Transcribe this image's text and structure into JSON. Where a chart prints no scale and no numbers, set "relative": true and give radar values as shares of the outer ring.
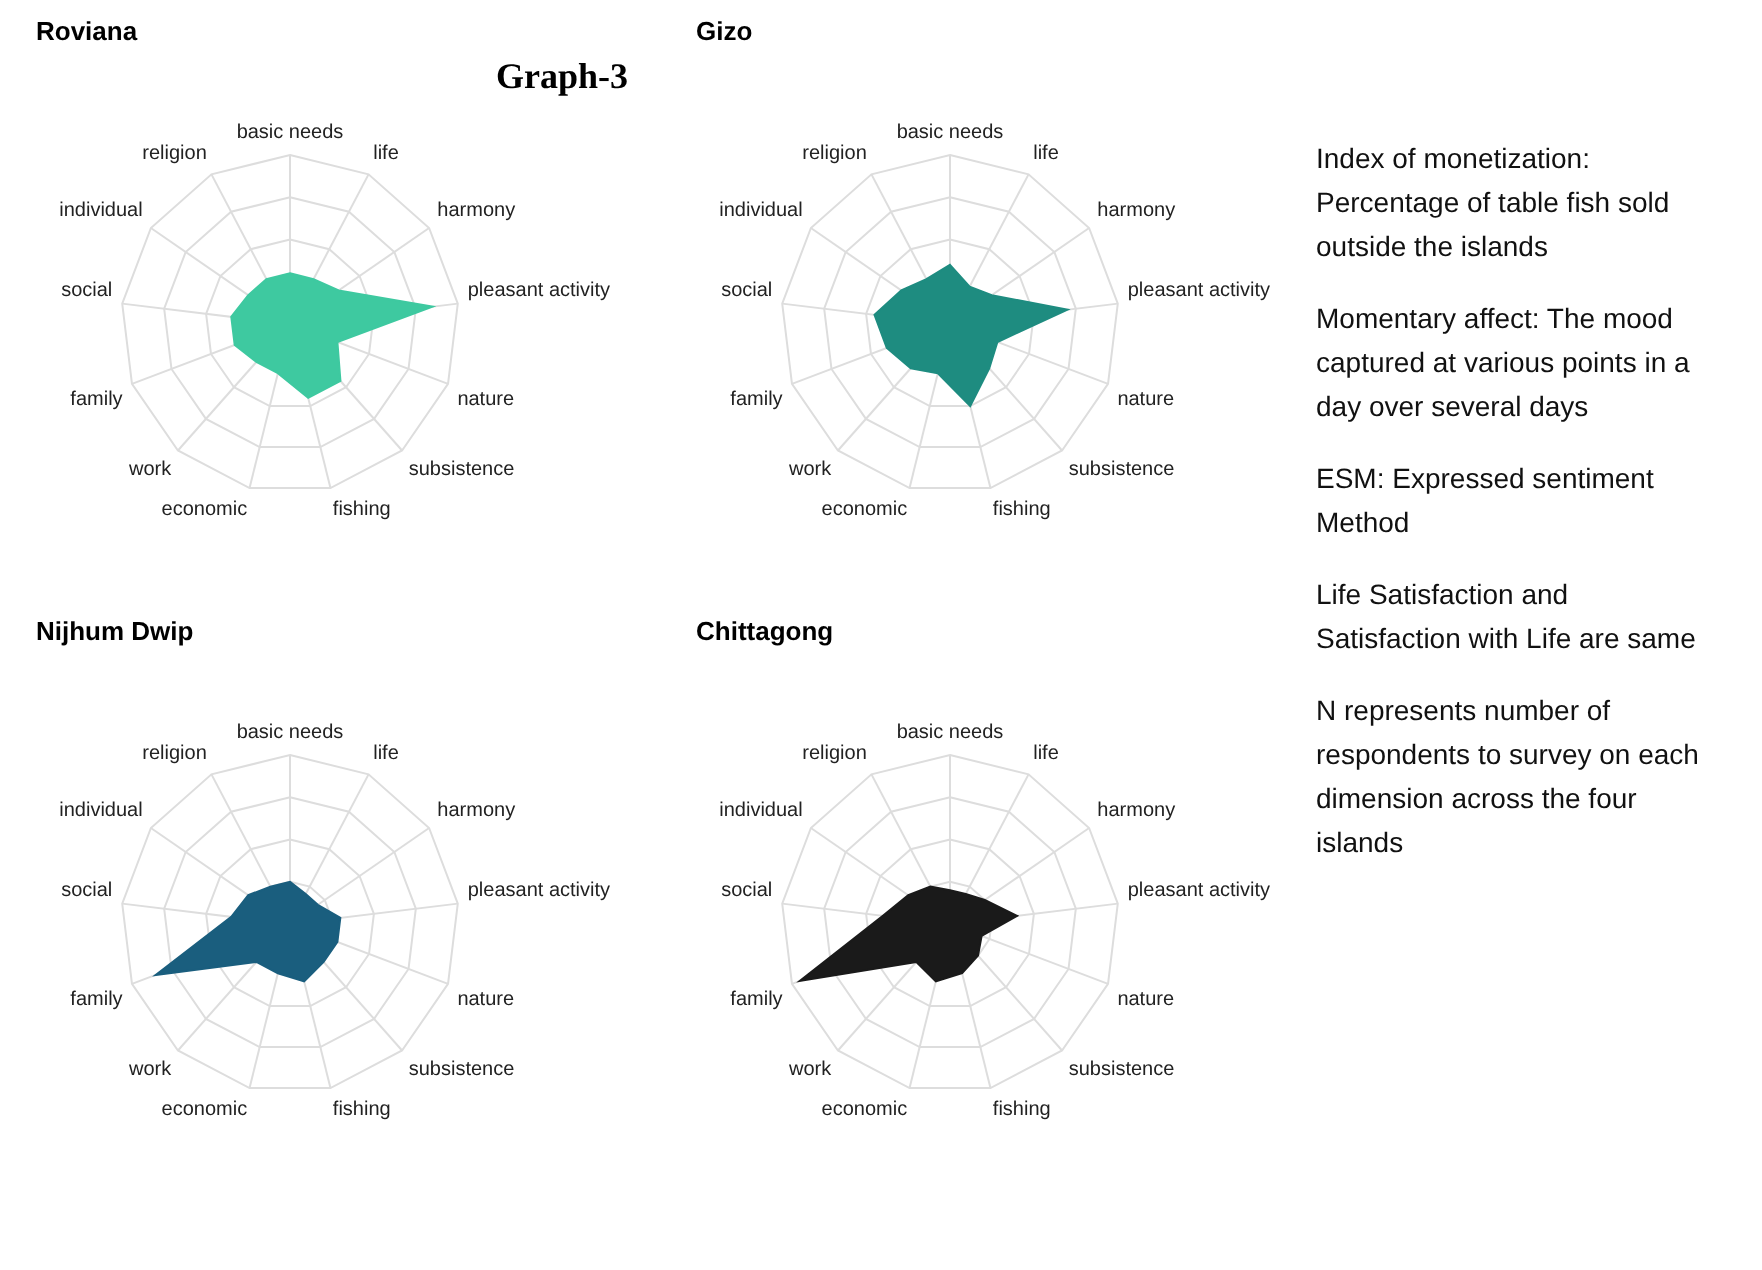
{
  "chart_data": [
    {
      "type": "radar",
      "title": "Roviana",
      "relative": true,
      "grid": true,
      "categories": [
        "basic needs",
        "life",
        "harmony",
        "pleasant activity",
        "nature",
        "subsistence",
        "fishing",
        "economic",
        "work",
        "family",
        "social",
        "individual",
        "religion"
      ],
      "series": [
        {
          "color": "#3ec9a0",
          "values": [
            0.3,
            0.3,
            0.35,
            0.85,
            0.3,
            0.45,
            0.45,
            0.3,
            0.3,
            0.35,
            0.35,
            0.3,
            0.3
          ]
        }
      ]
    },
    {
      "type": "radar",
      "title": "Gizo",
      "relative": true,
      "grid": true,
      "categories": [
        "basic needs",
        "life",
        "harmony",
        "pleasant activity",
        "nature",
        "subsistence",
        "fishing",
        "economic",
        "work",
        "family",
        "social",
        "individual",
        "religion"
      ],
      "series": [
        {
          "color": "#1e8c80",
          "values": [
            0.35,
            0.25,
            0.3,
            0.7,
            0.3,
            0.35,
            0.5,
            0.3,
            0.35,
            0.4,
            0.45,
            0.35,
            0.3
          ]
        }
      ]
    },
    {
      "type": "radar",
      "title": "Nijhum Dwip",
      "relative": true,
      "grid": true,
      "categories": [
        "basic needs",
        "life",
        "harmony",
        "pleasant activity",
        "nature",
        "subsistence",
        "fishing",
        "economic",
        "work",
        "family",
        "social",
        "individual",
        "religion"
      ],
      "series": [
        {
          "color": "#1a5e7e",
          "values": [
            0.25,
            0.2,
            0.2,
            0.3,
            0.3,
            0.3,
            0.35,
            0.3,
            0.3,
            0.85,
            0.35,
            0.3,
            0.25
          ]
        }
      ]
    },
    {
      "type": "radar",
      "title": "Chittagong",
      "relative": true,
      "grid": true,
      "categories": [
        "basic needs",
        "life",
        "harmony",
        "pleasant activity",
        "nature",
        "subsistence",
        "fishing",
        "economic",
        "work",
        "family",
        "social",
        "individual",
        "religion"
      ],
      "series": [
        {
          "color": "#1a1a1a",
          "values": [
            0.2,
            0.2,
            0.25,
            0.4,
            0.2,
            0.25,
            0.3,
            0.35,
            0.3,
            0.95,
            0.4,
            0.3,
            0.25
          ]
        }
      ]
    },
    {
      "type": "other",
      "title": "Graph-3",
      "annotations": [
        "Index of monetization: Percentage of table fish sold outside the islands",
        "Momentary affect: The mood captured at various points in a day over several days",
        "ESM: Expressed sentiment Method",
        "Life Satisfaction and Satisfaction with Life are same",
        "N represents number of respondents to survey on each dimension across the four islands"
      ]
    }
  ]
}
